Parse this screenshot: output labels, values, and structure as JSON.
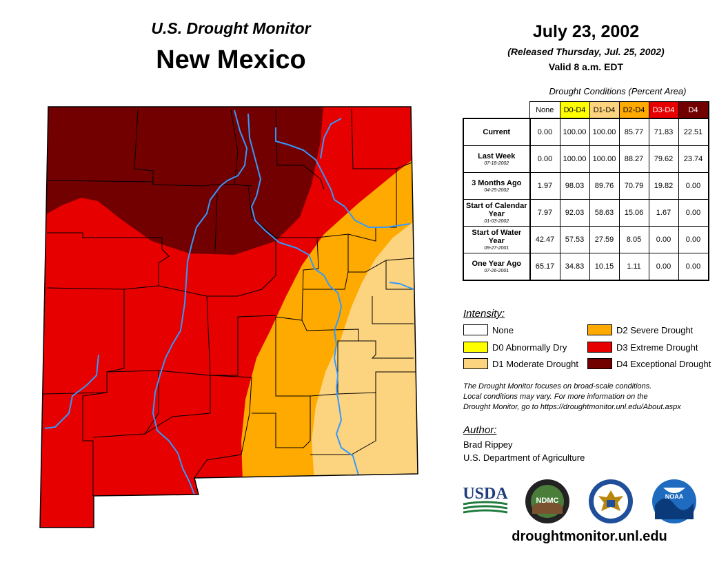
{
  "header": {
    "subtitle": "U.S. Drought Monitor",
    "state": "New Mexico",
    "date": "July 23, 2002",
    "released": "(Released Thursday, Jul. 25, 2002)",
    "valid": "Valid 8 a.m. EDT"
  },
  "table": {
    "caption": "Drought Conditions (Percent Area)",
    "columns": [
      "None",
      "D0-D4",
      "D1-D4",
      "D2-D4",
      "D3-D4",
      "D4"
    ],
    "column_colors": [
      "#ffffff",
      "#ffff00",
      "#fcd37f",
      "#ffaa00",
      "#e60000",
      "#730000"
    ],
    "rows": [
      {
        "label": "Current",
        "date": "",
        "values": [
          "0.00",
          "100.00",
          "100.00",
          "85.77",
          "71.83",
          "22.51"
        ]
      },
      {
        "label": "Last Week",
        "date": "07-18-2002",
        "values": [
          "0.00",
          "100.00",
          "100.00",
          "88.27",
          "79.62",
          "23.74"
        ]
      },
      {
        "label": "3 Months Ago",
        "date": "04-25-2002",
        "values": [
          "1.97",
          "98.03",
          "89.76",
          "70.79",
          "19.82",
          "0.00"
        ]
      },
      {
        "label": "Start of Calendar Year",
        "date": "01-03-2002",
        "values": [
          "7.97",
          "92.03",
          "58.63",
          "15.06",
          "1.67",
          "0.00"
        ]
      },
      {
        "label": "Start of Water Year",
        "date": "09-27-2001",
        "values": [
          "42.47",
          "57.53",
          "27.59",
          "8.05",
          "0.00",
          "0.00"
        ]
      },
      {
        "label": "One Year Ago",
        "date": "07-26-2001",
        "values": [
          "65.17",
          "34.83",
          "10.15",
          "1.11",
          "0.00",
          "0.00"
        ]
      }
    ]
  },
  "legend": {
    "title": "Intensity:",
    "items": [
      {
        "label": "None",
        "color": "#ffffff"
      },
      {
        "label": "D0 Abnormally Dry",
        "color": "#ffff00"
      },
      {
        "label": "D1 Moderate Drought",
        "color": "#fcd37f"
      },
      {
        "label": "D2 Severe Drought",
        "color": "#ffaa00"
      },
      {
        "label": "D3 Extreme Drought",
        "color": "#e60000"
      },
      {
        "label": "D4 Exceptional Drought",
        "color": "#730000"
      }
    ]
  },
  "note": {
    "line1": "The Drought Monitor focuses on broad-scale conditions.",
    "line2": "Local conditions may vary. For more information on the",
    "line3": "Drought Monitor, go to https://droughtmonitor.unl.edu/About.aspx"
  },
  "author": {
    "title": "Author:",
    "name": "Brad Rippey",
    "org": "U.S. Department of Agriculture"
  },
  "logos": {
    "usda": "USDA",
    "ndmc": "NDMC",
    "noaa": "NOAA",
    "doc_icon": "eagle-seal-icon"
  },
  "website": "droughtmonitor.unl.edu",
  "colors": {
    "river": "#3399ff",
    "county_border": "#000000"
  }
}
